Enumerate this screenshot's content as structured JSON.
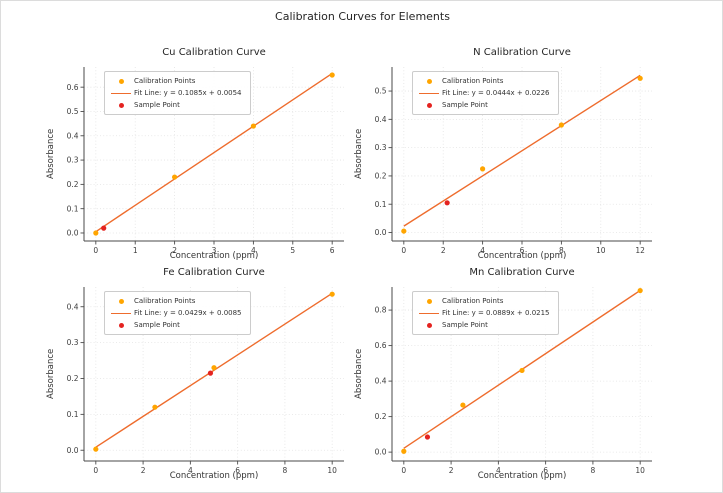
{
  "figure": {
    "title": "Calibration Curves for Elements"
  },
  "colors": {
    "calibration": "#FFA500",
    "fit_line": "#EE6C2D",
    "sample": "#E42320",
    "grid": "#E3E3E3",
    "spine": "#4A4A4A",
    "tick_text": "#3D3D3D"
  },
  "legend": {
    "calibration_label": "Calibration Points",
    "sample_label": "Sample Point"
  },
  "chart_data": [
    {
      "type": "scatter",
      "element": "Cu",
      "title": "Cu Calibration Curve",
      "xlabel": "Concentration (ppm)",
      "ylabel": "Absorbance",
      "fit_label": "Fit Line: y = 0.1085x + 0.0054",
      "fit": {
        "slope": 0.1085,
        "intercept": 0.0054
      },
      "calibration_points": [
        [
          0,
          0.0
        ],
        [
          2,
          0.23
        ],
        [
          4,
          0.44
        ],
        [
          6,
          0.65
        ]
      ],
      "sample_point": [
        0.2,
        0.02
      ],
      "xlim": [
        -0.3,
        6.3
      ],
      "ylim": [
        -0.033,
        0.683
      ],
      "xticks": [
        0,
        1,
        2,
        3,
        4,
        5,
        6
      ],
      "yticks": [
        0.0,
        0.1,
        0.2,
        0.3,
        0.4,
        0.5,
        0.6
      ],
      "tick_decimals": {
        "x": 0,
        "y": 1
      },
      "grid": true,
      "legend_position": "upper-left"
    },
    {
      "type": "scatter",
      "element": "N",
      "title": "N Calibration Curve",
      "xlabel": "Concentration (ppm)",
      "ylabel": "Absorbance",
      "fit_label": "Fit Line: y = 0.0444x + 0.0226",
      "fit": {
        "slope": 0.0444,
        "intercept": 0.0226
      },
      "calibration_points": [
        [
          0,
          0.005
        ],
        [
          4,
          0.225
        ],
        [
          8,
          0.38
        ],
        [
          12,
          0.545
        ]
      ],
      "sample_point": [
        2.2,
        0.105
      ],
      "xlim": [
        -0.6,
        12.6
      ],
      "ylim": [
        -0.03,
        0.585
      ],
      "xticks": [
        0,
        2,
        4,
        6,
        8,
        10,
        12
      ],
      "yticks": [
        0.0,
        0.1,
        0.2,
        0.3,
        0.4,
        0.5
      ],
      "tick_decimals": {
        "x": 0,
        "y": 1
      },
      "grid": true,
      "legend_position": "upper-left"
    },
    {
      "type": "scatter",
      "element": "Fe",
      "title": "Fe Calibration Curve",
      "xlabel": "Concentration (ppm)",
      "ylabel": "Absorbance",
      "fit_label": "Fit Line: y = 0.0429x + 0.0085",
      "fit": {
        "slope": 0.0429,
        "intercept": 0.0085
      },
      "calibration_points": [
        [
          0,
          0.003
        ],
        [
          2.5,
          0.12
        ],
        [
          5,
          0.23
        ],
        [
          10,
          0.435
        ]
      ],
      "sample_point": [
        4.85,
        0.215
      ],
      "xlim": [
        -0.5,
        10.5
      ],
      "ylim": [
        -0.03,
        0.455
      ],
      "xticks": [
        0,
        2,
        4,
        6,
        8,
        10
      ],
      "yticks": [
        0.0,
        0.1,
        0.2,
        0.3,
        0.4
      ],
      "tick_decimals": {
        "x": 0,
        "y": 1
      },
      "grid": true,
      "legend_position": "upper-left"
    },
    {
      "type": "scatter",
      "element": "Mn",
      "title": "Mn Calibration Curve",
      "xlabel": "Concentration (ppm)",
      "ylabel": "Absorbance",
      "fit_label": "Fit Line: y = 0.0889x + 0.0215",
      "fit": {
        "slope": 0.0889,
        "intercept": 0.0215
      },
      "calibration_points": [
        [
          0,
          0.005
        ],
        [
          2.5,
          0.265
        ],
        [
          5,
          0.46
        ],
        [
          10,
          0.91
        ]
      ],
      "sample_point": [
        1.0,
        0.085
      ],
      "xlim": [
        -0.5,
        10.5
      ],
      "ylim": [
        -0.05,
        0.93
      ],
      "xticks": [
        0,
        2,
        4,
        6,
        8,
        10
      ],
      "yticks": [
        0.0,
        0.2,
        0.4,
        0.6,
        0.8
      ],
      "tick_decimals": {
        "x": 0,
        "y": 1
      },
      "grid": true,
      "legend_position": "upper-left"
    }
  ]
}
